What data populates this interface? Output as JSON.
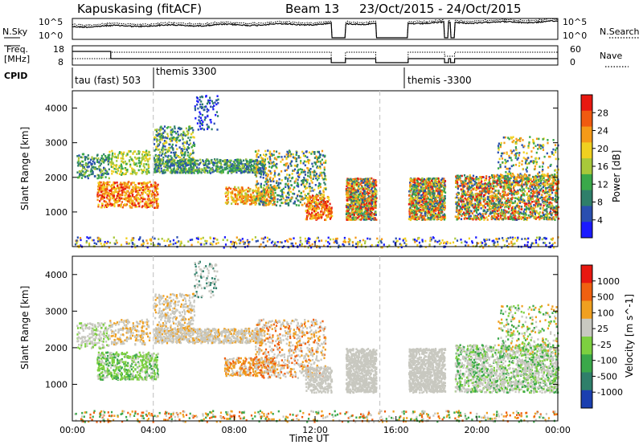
{
  "header": {
    "station": "Kapuskasing (fitACF)",
    "beam": "Beam 13",
    "dates": "23/Oct/2015 - 24/Oct/2015"
  },
  "noise_panel": {
    "left_label": "N.Sky",
    "right_label": "N.Search",
    "left_ticks": [
      "10^5",
      "10^0"
    ],
    "right_ticks": [
      "10^5",
      "10^0"
    ]
  },
  "freq_panel": {
    "left_label_line1": "Freq.",
    "left_label_line2": "[MHz]",
    "right_label": "Nave",
    "left_ticks": [
      "18",
      "8"
    ],
    "right_ticks": [
      "60",
      "0"
    ]
  },
  "cpid": {
    "label": "CPID",
    "segments": [
      {
        "text": "tau (fast) 503",
        "start_hour": 0.0
      },
      {
        "text": "themis 3300",
        "start_hour": 4.0
      },
      {
        "text": "themis -3300",
        "start_hour": 16.6
      }
    ]
  },
  "chart_data": [
    {
      "type": "heatmap",
      "name": "power",
      "ylabel": "Slant Range [km]",
      "xlim": [
        0,
        24
      ],
      "ylim": [
        0,
        4500
      ],
      "yticks": [
        1000,
        2000,
        3000,
        4000
      ],
      "colorbar": {
        "label": "Power [dB]",
        "ticks": [
          "4",
          "8",
          "12",
          "16",
          "20",
          "24",
          "28"
        ],
        "colors": [
          "#1a1aff",
          "#2a4fb0",
          "#2f7f6a",
          "#3aa84a",
          "#a8c83a",
          "#f0d020",
          "#f59a18",
          "#f05a10",
          "#e81810"
        ]
      }
    },
    {
      "type": "heatmap",
      "name": "velocity",
      "ylabel": "Slant Range [km]",
      "xlabel": "Time UT",
      "xlim": [
        0,
        24
      ],
      "ylim": [
        0,
        4500
      ],
      "yticks": [
        1000,
        2000,
        3000,
        4000
      ],
      "xticks": [
        "00:00",
        "04:00",
        "08:00",
        "12:00",
        "16:00",
        "20:00",
        "00:00"
      ],
      "colorbar": {
        "label": "Velocity [m s^-1]",
        "ticks": [
          "1000",
          "500",
          "100",
          "25",
          "-25",
          "-100",
          "-500",
          "-1000"
        ],
        "colors": [
          "#1a3fb0",
          "#2f7f6a",
          "#3aa84a",
          "#7dd040",
          "#c8c8c0",
          "#f0a020",
          "#f06010",
          "#e81810"
        ]
      }
    }
  ]
}
